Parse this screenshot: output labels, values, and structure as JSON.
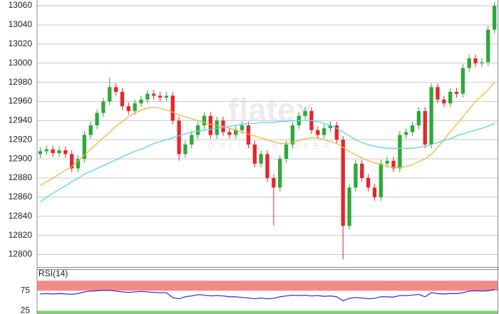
{
  "watermark": {
    "logo": "flatex",
    "tagline": "ONLINE BROKER"
  },
  "chart_data": [
    {
      "type": "candlestick",
      "ylim": [
        12787,
        13066
      ],
      "yticks": [
        12800,
        12820,
        12840,
        12860,
        12880,
        12900,
        12920,
        12940,
        12960,
        12980,
        13000,
        13020,
        13040,
        13060
      ],
      "grid": true,
      "up_color": "#2fa83a",
      "down_color": "#e5262c",
      "open": [
        12905,
        12908,
        12910,
        12906,
        12909,
        12905,
        12890,
        12900,
        12925,
        12935,
        12948,
        12960,
        12975,
        12970,
        12955,
        12950,
        12958,
        12962,
        12968,
        12966,
        12964,
        12966,
        12940,
        12905,
        12915,
        12925,
        12935,
        12945,
        12925,
        12940,
        12928,
        12925,
        12930,
        12935,
        12915,
        12895,
        12905,
        12880,
        12870,
        12900,
        12915,
        12935,
        12945,
        12950,
        12930,
        12925,
        12932,
        12935,
        12920,
        12830,
        12870,
        12895,
        12880,
        12870,
        12860,
        12895,
        12898,
        12890,
        12925,
        12928,
        12935,
        12950,
        12915,
        12975,
        12962,
        12958,
        12970,
        12968,
        12995,
        13005,
        13000,
        13001,
        13035
      ],
      "high": [
        12912,
        12914,
        12914,
        12913,
        12913,
        12909,
        12904,
        12929,
        12939,
        12952,
        12964,
        12985,
        12979,
        12974,
        12959,
        12962,
        12966,
        12972,
        12972,
        12970,
        12970,
        12970,
        12944,
        12919,
        12929,
        12939,
        12949,
        12949,
        12944,
        12944,
        12932,
        12934,
        12939,
        12939,
        12919,
        12909,
        12909,
        12884,
        12904,
        12919,
        12939,
        12949,
        12954,
        12954,
        12934,
        12936,
        12939,
        12939,
        12924,
        12874,
        12899,
        12899,
        12884,
        12874,
        12899,
        12902,
        12902,
        12929,
        12932,
        12939,
        12954,
        12954,
        12979,
        12979,
        12966,
        12974,
        12974,
        12999,
        13009,
        13009,
        13005,
        13039,
        13064
      ],
      "low": [
        12901,
        12904,
        12902,
        12902,
        12901,
        12886,
        12886,
        12896,
        12921,
        12931,
        12944,
        12956,
        12966,
        12951,
        12946,
        12946,
        12954,
        12958,
        12962,
        12960,
        12960,
        12936,
        12898,
        12901,
        12911,
        12921,
        12931,
        12921,
        12921,
        12924,
        12921,
        12921,
        12926,
        12911,
        12891,
        12891,
        12876,
        12830,
        12866,
        12896,
        12911,
        12931,
        12941,
        12926,
        12921,
        12921,
        12928,
        12916,
        12795,
        12826,
        12866,
        12876,
        12866,
        12856,
        12856,
        12891,
        12886,
        12886,
        12921,
        12924,
        12931,
        12911,
        12911,
        12958,
        12954,
        12954,
        12964,
        12964,
        12991,
        12996,
        12996,
        12997,
        13031
      ],
      "close": [
        12908,
        12910,
        12906,
        12909,
        12905,
        12890,
        12900,
        12925,
        12935,
        12948,
        12960,
        12975,
        12970,
        12955,
        12950,
        12958,
        12962,
        12968,
        12966,
        12964,
        12966,
        12940,
        12905,
        12915,
        12925,
        12935,
        12945,
        12925,
        12940,
        12928,
        12925,
        12930,
        12935,
        12915,
        12895,
        12905,
        12880,
        12870,
        12900,
        12915,
        12935,
        12945,
        12950,
        12930,
        12925,
        12932,
        12935,
        12920,
        12830,
        12870,
        12895,
        12880,
        12870,
        12860,
        12895,
        12898,
        12890,
        12925,
        12928,
        12935,
        12950,
        12915,
        12975,
        12962,
        12958,
        12970,
        12968,
        12995,
        13005,
        13000,
        13001,
        13035,
        13060
      ],
      "series": [
        {
          "color": "#f5b43c",
          "values": [
            12872,
            12876,
            12880,
            12884,
            12888,
            12892,
            12898,
            12904,
            12910,
            12916,
            12922,
            12928,
            12934,
            12939,
            12944,
            12948,
            12951,
            12953,
            12954,
            12953,
            12951,
            12949,
            12946,
            12944,
            12942,
            12940,
            12938,
            12936,
            12935,
            12934,
            12932,
            12930,
            12928,
            12926,
            12924,
            12922,
            12920,
            12918,
            12916,
            12916,
            12917,
            12919,
            12921,
            12922,
            12922,
            12920,
            12918,
            12916,
            12912,
            12908,
            12904,
            12901,
            12898,
            12896,
            12894,
            12892,
            12891,
            12891,
            12892,
            12894,
            12897,
            12900,
            12905,
            12912,
            12920,
            12928,
            12936,
            12944,
            12952,
            12960,
            12966,
            12972,
            12980
          ]
        },
        {
          "color": "#5ad4ec",
          "values": [
            12855,
            12860,
            12864,
            12868,
            12872,
            12876,
            12880,
            12884,
            12887,
            12890,
            12893,
            12896,
            12899,
            12902,
            12905,
            12908,
            12910,
            12913,
            12916,
            12918,
            12920,
            12922,
            12924,
            12926,
            12928,
            12929,
            12930,
            12931,
            12932,
            12933,
            12934,
            12935,
            12936,
            12937,
            12937,
            12938,
            12938,
            12938,
            12939,
            12939,
            12940,
            12940,
            12940,
            12940,
            12939,
            12937,
            12935,
            12932,
            12928,
            12924,
            12920,
            12917,
            12915,
            12913,
            12912,
            12911,
            12911,
            12911,
            12911,
            12911,
            12912,
            12913,
            12915,
            12917,
            12919,
            12921,
            12924,
            12926,
            12928,
            12930,
            12932,
            12934,
            12937
          ]
        }
      ]
    },
    {
      "type": "line",
      "title": "RSI(14)",
      "ylim": [
        17,
        127
      ],
      "yticks": [
        25,
        75
      ],
      "bands": [
        {
          "from": 75,
          "to": 100,
          "color": "#f28a88"
        },
        {
          "from": 0,
          "to": 25,
          "color": "#7fcf70"
        }
      ],
      "series": [
        {
          "color": "#3a3ae0",
          "values": [
            67,
            68,
            67,
            68,
            67,
            66,
            68,
            72,
            74,
            75,
            76,
            76,
            74,
            72,
            71,
            72,
            73,
            72,
            71,
            70,
            70,
            58,
            55,
            60,
            62,
            65,
            64,
            62,
            63,
            62,
            60,
            60,
            58,
            57,
            55,
            57,
            55,
            56,
            60,
            62,
            64,
            63,
            64,
            62,
            63,
            61,
            62,
            60,
            50,
            56,
            58,
            57,
            55,
            56,
            60,
            60,
            59,
            63,
            63,
            64,
            66,
            60,
            70,
            68,
            67,
            68,
            68,
            70,
            74,
            75,
            74,
            75,
            78
          ]
        }
      ]
    }
  ]
}
